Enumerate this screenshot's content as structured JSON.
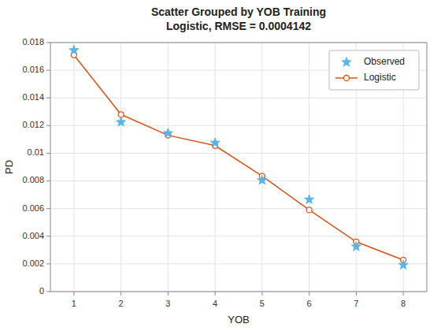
{
  "chart_data": {
    "type": "line",
    "title": "Scatter Grouped by YOB Training\nLogistic, RMSE = 0.0004142",
    "xlabel": "YOB",
    "ylabel": "PD",
    "x": [
      1,
      2,
      3,
      4,
      5,
      6,
      7,
      8
    ],
    "series": [
      {
        "name": "Observed",
        "color": "#5ab4e5",
        "marker": "star",
        "line_style": "none",
        "values": [
          0.01745,
          0.01225,
          0.01145,
          0.01075,
          0.00805,
          0.00665,
          0.00325,
          0.00192
        ]
      },
      {
        "name": "Logistic",
        "color": "#d95319",
        "marker": "circle",
        "line_style": "solid",
        "values": [
          0.0171,
          0.0128,
          0.0113,
          0.01055,
          0.00835,
          0.0059,
          0.0036,
          0.00228
        ]
      }
    ],
    "xlim": [
      0.5,
      8.5
    ],
    "ylim": [
      0,
      0.018
    ],
    "xticks": [
      1,
      2,
      3,
      4,
      5,
      6,
      7,
      8
    ],
    "yticks": [
      0,
      0.002,
      0.004,
      0.006,
      0.008,
      0.01,
      0.012,
      0.014,
      0.016,
      0.018
    ],
    "grid": true,
    "legend": "top-right"
  }
}
